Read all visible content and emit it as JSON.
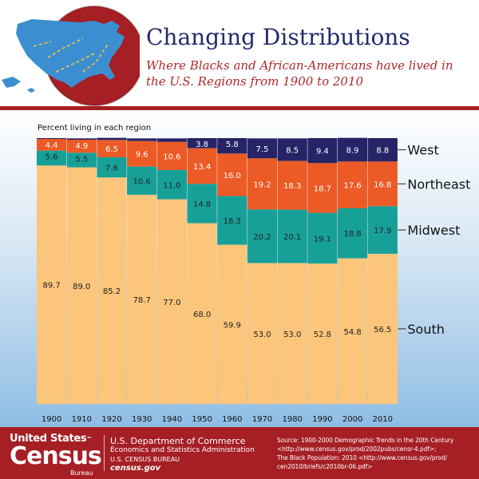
{
  "header": {
    "title": "Changing Distributions",
    "subtitle": "Where Blacks and African-Americans have lived in the U.S. Regions from 1900 to 2010"
  },
  "colors": {
    "south": "#fbc67c",
    "midwest": "#17a098",
    "northeast": "#ec5a26",
    "west": "#262466",
    "header_rule": "#a51f24",
    "title": "#232a6b",
    "subtitle": "#b0262b",
    "footer": "#a51f24"
  },
  "chart_data": {
    "type": "bar",
    "stacked": true,
    "title": "Changing Distributions",
    "ylabel": "Percent living in each region",
    "xlabel": "",
    "ylim": [
      0,
      100
    ],
    "categories": [
      "1900",
      "1910",
      "1920",
      "1930",
      "1940",
      "1950",
      "1960",
      "1970",
      "1980",
      "1990",
      "2000",
      "2010"
    ],
    "series": [
      {
        "name": "South",
        "color": "#fbc67c",
        "labels": [
          "89.7",
          "89.0",
          "85.2",
          "78.7",
          "77.0",
          "68.0",
          "59.9",
          "53.0",
          "53.0",
          "52.8",
          "54.8",
          "56.5"
        ],
        "values": [
          89.7,
          89.0,
          85.2,
          78.7,
          77.0,
          68.0,
          59.9,
          53.0,
          53.0,
          52.8,
          54.8,
          56.5
        ]
      },
      {
        "name": "Midwest",
        "color": "#17a098",
        "labels": [
          "5.6",
          "5.5",
          "7.6",
          "10.6",
          "11.0",
          "14.8",
          "18.3",
          "20.2",
          "20.1",
          "19.1",
          "18.8",
          "17.9"
        ],
        "values": [
          5.6,
          5.5,
          7.6,
          10.6,
          11.0,
          14.8,
          18.3,
          20.2,
          20.1,
          19.1,
          18.8,
          17.9
        ]
      },
      {
        "name": "Northeast",
        "color": "#ec5a26",
        "labels": [
          "4.4",
          "4.9",
          "6.5",
          "9.6",
          "10.6",
          "13.4",
          "16.0",
          "19.2",
          "18.3",
          "18.7",
          "17.6",
          "16.8"
        ],
        "values": [
          4.4,
          4.9,
          6.5,
          9.6,
          10.6,
          13.4,
          16.0,
          19.2,
          18.3,
          18.7,
          17.6,
          16.8
        ]
      },
      {
        "name": "West",
        "color": "#262466",
        "labels": [
          "0.3",
          "0.5",
          "0.8",
          "1.0",
          "1.3",
          "3.8",
          "5.8",
          "7.5",
          "8.5",
          "9.4",
          "8.9",
          "8.8"
        ],
        "values": [
          0.3,
          0.5,
          0.8,
          1.0,
          1.3,
          3.8,
          5.8,
          7.5,
          8.5,
          9.4,
          8.9,
          8.8
        ],
        "label_from_index": 5
      }
    ],
    "legend": "right"
  },
  "footer": {
    "brand_top": "United States",
    "brand_tm": "™",
    "brand_main": "Census",
    "brand_sub": "Bureau",
    "dept_name": "U.S. Department of Commerce",
    "dept_sub": "Economics and Statistics Administration",
    "dept_bureau": "U.S. CENSUS BUREAU",
    "dept_url": "census.gov",
    "source_line1": "Source: 1900-2000 Demographic Trends in the 20th Century",
    "source_line2": "<http://www.census.gov/prod/2002pubs/censr-4.pdf>;",
    "source_line3": "The Black Population: 2010 <http://www.census.gov/prod/",
    "source_line4": "cen2010/briefs/c2010br-06.pdf>"
  }
}
